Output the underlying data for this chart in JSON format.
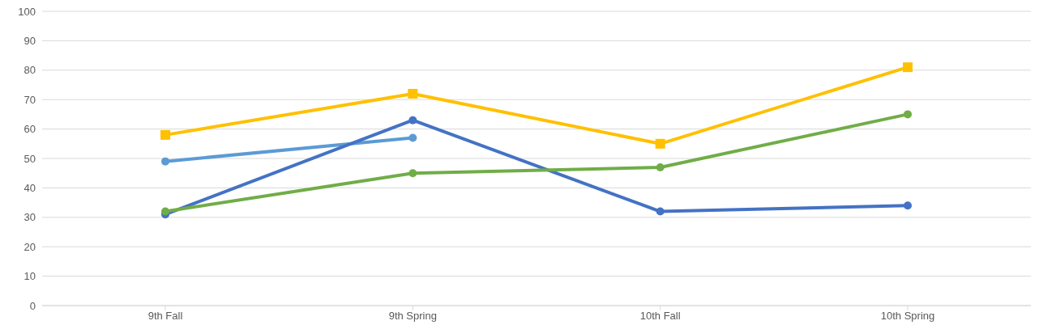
{
  "chart_data": {
    "type": "line",
    "categories": [
      "9th Fall",
      "9th Spring",
      "10th Fall",
      "10th Spring"
    ],
    "series": [
      {
        "color": "#5b9bd5",
        "values": [
          49,
          57,
          null,
          null
        ],
        "marker": "circle"
      },
      {
        "color": "#4472c4",
        "values": [
          31,
          63,
          32,
          34
        ],
        "marker": "circle"
      },
      {
        "color": "#70ad47",
        "values": [
          32,
          45,
          47,
          65
        ],
        "marker": "circle"
      },
      {
        "color": "#ffc000",
        "values": [
          58,
          72,
          55,
          81
        ],
        "marker": "square"
      }
    ],
    "ylim": [
      0,
      100
    ],
    "yticks": [
      0,
      10,
      20,
      30,
      40,
      50,
      60,
      70,
      80,
      90,
      100
    ],
    "grid": "y",
    "legend": false,
    "line_style": "solid"
  }
}
